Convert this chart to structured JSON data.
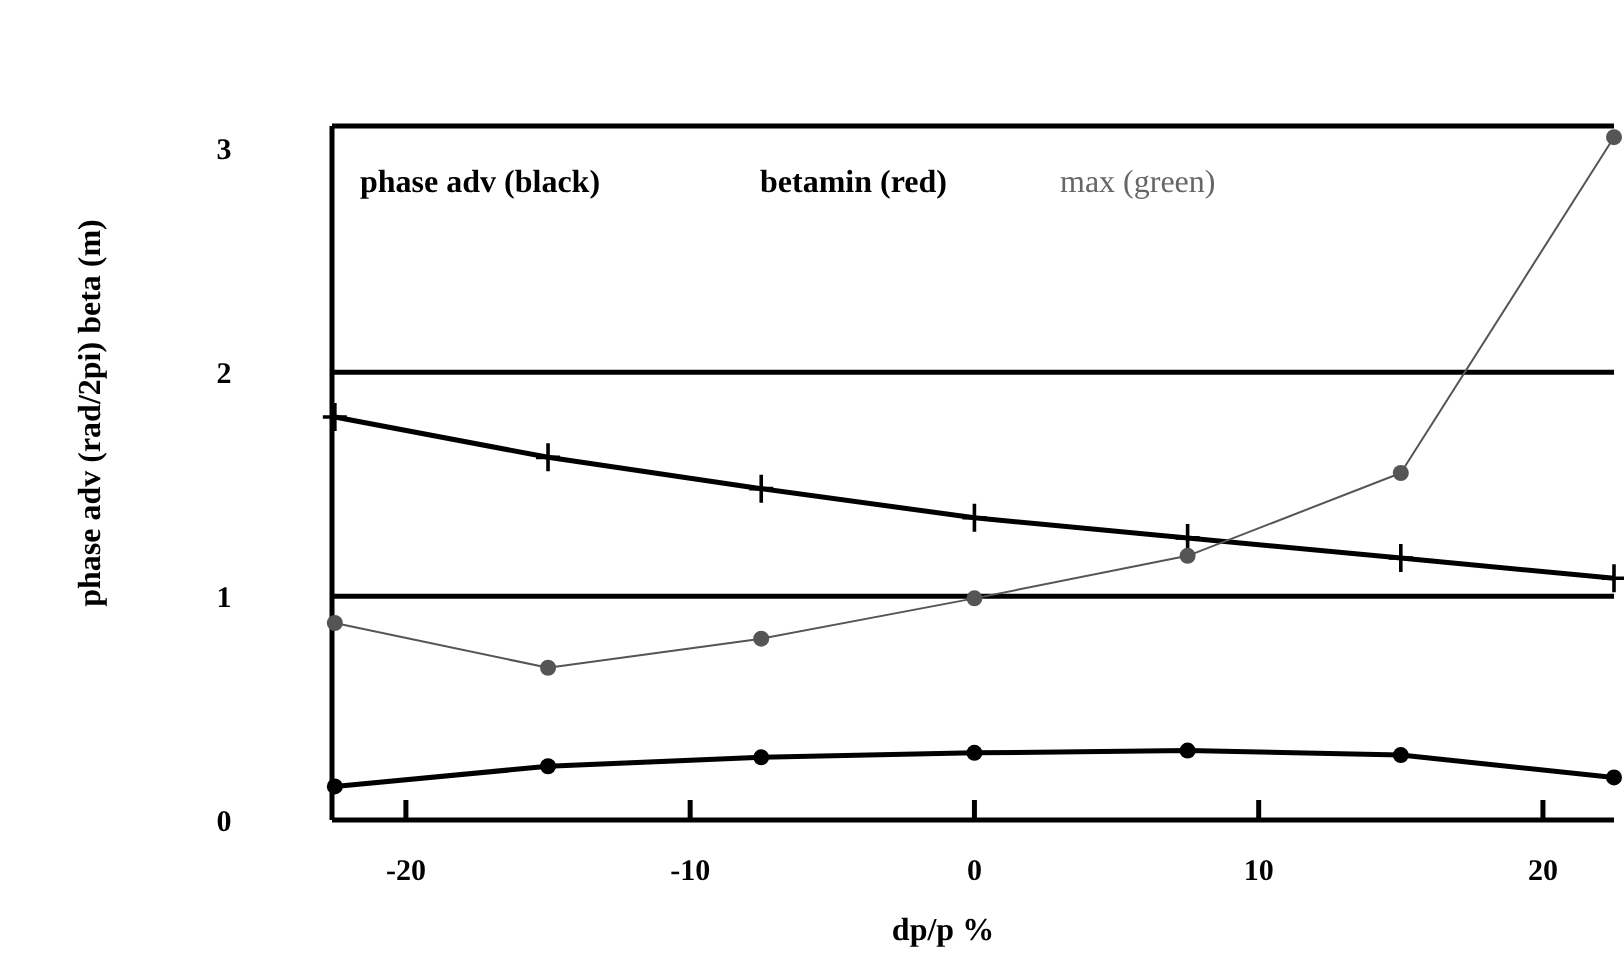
{
  "chart_data": {
    "type": "line",
    "xlabel": "dp/p  %",
    "ylabel": "phase adv (rad/2pi)  beta (m)",
    "annotations": [
      "phase adv (black)",
      "betamin (red)",
      "max (green)"
    ],
    "x": [
      -22.5,
      -15,
      -7.5,
      0,
      7.5,
      15,
      22.5
    ],
    "xlim": [
      -22.6,
      22.5
    ],
    "xticks": [
      -20,
      -10,
      0,
      10,
      20
    ],
    "ylim": [
      0,
      3.1
    ],
    "yticks": [
      0,
      1,
      2,
      3
    ],
    "ref_lines": [
      {
        "axis": "y",
        "value": 1
      },
      {
        "axis": "y",
        "value": 2
      }
    ],
    "series": [
      {
        "color": "#000000",
        "marker": "cross",
        "values": [
          1.8,
          1.62,
          1.48,
          1.35,
          1.26,
          1.17,
          1.08
        ]
      },
      {
        "color": "#555555",
        "marker": "circle",
        "values": [
          0.88,
          0.68,
          0.81,
          0.99,
          1.18,
          1.55,
          3.05
        ]
      },
      {
        "color": "#000000",
        "marker": "circle",
        "values": [
          0.15,
          0.24,
          0.28,
          0.3,
          0.31,
          0.29,
          0.19
        ]
      }
    ]
  }
}
